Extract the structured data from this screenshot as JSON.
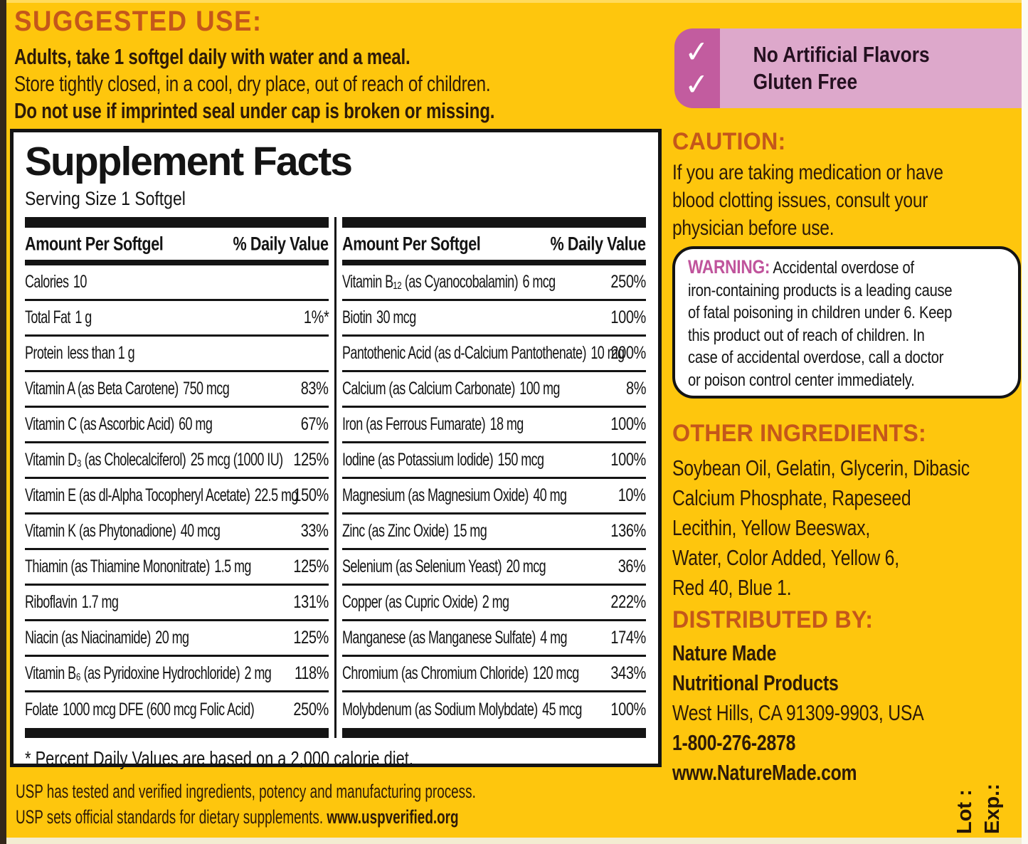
{
  "colors": {
    "background_yellow": "#FEC60D",
    "heading_orange": "#C4571B",
    "panel_black": "#141414",
    "body_text_brown": "#2E1A08",
    "badge_pink_dark": "#C25C9F",
    "badge_pink_light": "#DDA8CB",
    "warning_pink": "#C0549C"
  },
  "suggested_use": {
    "heading": "SUGGESTED USE:",
    "line1": "Adults, take 1 softgel daily with water and a meal.",
    "line2": "Store tightly closed, in a cool, dry place, out of reach of children.",
    "line3": "Do not use if imprinted seal under cap is broken or missing."
  },
  "badge": {
    "check_icon": "✓",
    "items": [
      "No Artificial Flavors",
      "Gluten Free"
    ]
  },
  "supplement_facts": {
    "title": "Supplement Facts",
    "serving": "Serving Size 1 Softgel",
    "col_header": {
      "amount": "Amount Per Softgel",
      "dv": "% Daily Value"
    },
    "left_rows": [
      {
        "label": "Calories",
        "amount": "10",
        "dv": ""
      },
      {
        "label": "Total Fat",
        "amount": "1 g",
        "dv": "1%*"
      },
      {
        "label": "Protein",
        "amount": "less than 1 g",
        "dv": ""
      },
      {
        "label": "Vitamin A (as Beta Carotene)",
        "amount": "750 mcg",
        "dv": "83%"
      },
      {
        "label": "Vitamin C (as Ascorbic Acid)",
        "amount": "60 mg",
        "dv": "67%"
      },
      {
        "label": "Vitamin D₃ (as Cholecalciferol)",
        "amount": "25 mcg (1000 IU)",
        "dv": "125%"
      },
      {
        "label": "Vitamin E (as dl-Alpha Tocopheryl Acetate)",
        "amount": "22.5 mg",
        "dv": "150%"
      },
      {
        "label": "Vitamin K (as Phytonadione)",
        "amount": "40 mcg",
        "dv": "33%"
      },
      {
        "label": "Thiamin (as Thiamine Mononitrate)",
        "amount": "1.5 mg",
        "dv": "125%"
      },
      {
        "label": "Riboflavin",
        "amount": "1.7 mg",
        "dv": "131%"
      },
      {
        "label": "Niacin (as Niacinamide)",
        "amount": "20 mg",
        "dv": "125%"
      },
      {
        "label": "Vitamin B₆ (as Pyridoxine Hydrochloride)",
        "amount": "2 mg",
        "dv": "118%"
      },
      {
        "label": "Folate",
        "amount": "1000 mcg DFE (600 mcg Folic Acid)",
        "dv": "250%"
      }
    ],
    "right_rows": [
      {
        "label": "Vitamin B₁₂ (as Cyanocobalamin)",
        "amount": "6 mcg",
        "dv": "250%"
      },
      {
        "label": "Biotin",
        "amount": "30 mcg",
        "dv": "100%"
      },
      {
        "label": "Pantothenic Acid (as d-Calcium Pantothenate)",
        "amount": "10 mg",
        "dv": "200%"
      },
      {
        "label": "Calcium (as Calcium Carbonate)",
        "amount": "100 mg",
        "dv": "8%"
      },
      {
        "label": "Iron (as Ferrous Fumarate)",
        "amount": "18 mg",
        "dv": "100%"
      },
      {
        "label": "Iodine (as Potassium Iodide)",
        "amount": "150 mcg",
        "dv": "100%"
      },
      {
        "label": "Magnesium (as Magnesium Oxide)",
        "amount": "40 mg",
        "dv": "10%"
      },
      {
        "label": "Zinc (as Zinc Oxide)",
        "amount": "15 mg",
        "dv": "136%"
      },
      {
        "label": "Selenium (as Selenium Yeast)",
        "amount": "20 mcg",
        "dv": "36%"
      },
      {
        "label": "Copper (as Cupric Oxide)",
        "amount": "2 mg",
        "dv": "222%"
      },
      {
        "label": "Manganese (as Manganese Sulfate)",
        "amount": "4 mg",
        "dv": "174%"
      },
      {
        "label": "Chromium (as Chromium Chloride)",
        "amount": "120 mcg",
        "dv": "343%"
      },
      {
        "label": "Molybdenum (as Sodium Molybdate)",
        "amount": "45 mcg",
        "dv": "100%"
      }
    ],
    "footnote": "* Percent Daily Values are based on a 2,000 calorie diet."
  },
  "usp": {
    "line1": "USP has tested and verified ingredients, potency and manufacturing process.",
    "line2": "USP sets official standards for dietary supplements.",
    "link": "www.uspverified.org"
  },
  "caution": {
    "heading": "CAUTION:",
    "lines": [
      "If you are taking medication or have",
      "blood clotting issues, consult your",
      "physician before use."
    ]
  },
  "warning": {
    "label": "WARNING:",
    "lines": [
      "Accidental overdose of",
      "iron-containing products is a leading cause",
      "of fatal poisoning in children under 6. Keep",
      "this product out of reach of children. In",
      "case of accidental overdose, call a doctor",
      "or poison control center immediately."
    ]
  },
  "other_ingredients": {
    "heading": "OTHER INGREDIENTS:",
    "lines": [
      "Soybean Oil, Gelatin, Glycerin, Dibasic",
      "Calcium Phosphate, Rapeseed",
      "Lecithin, Yellow Beeswax,",
      "Water, Color Added, Yellow 6,",
      "Red 40, Blue 1."
    ]
  },
  "distributed_by": {
    "heading": "DISTRIBUTED BY:",
    "lines": [
      "Nature Made",
      "Nutritional Products",
      "West Hills, CA 91309-9903, USA",
      "1-800-276-2878",
      "www.NatureMade.com"
    ]
  },
  "lot_exp": {
    "lot": "Lot :",
    "exp": "Exp.:"
  }
}
